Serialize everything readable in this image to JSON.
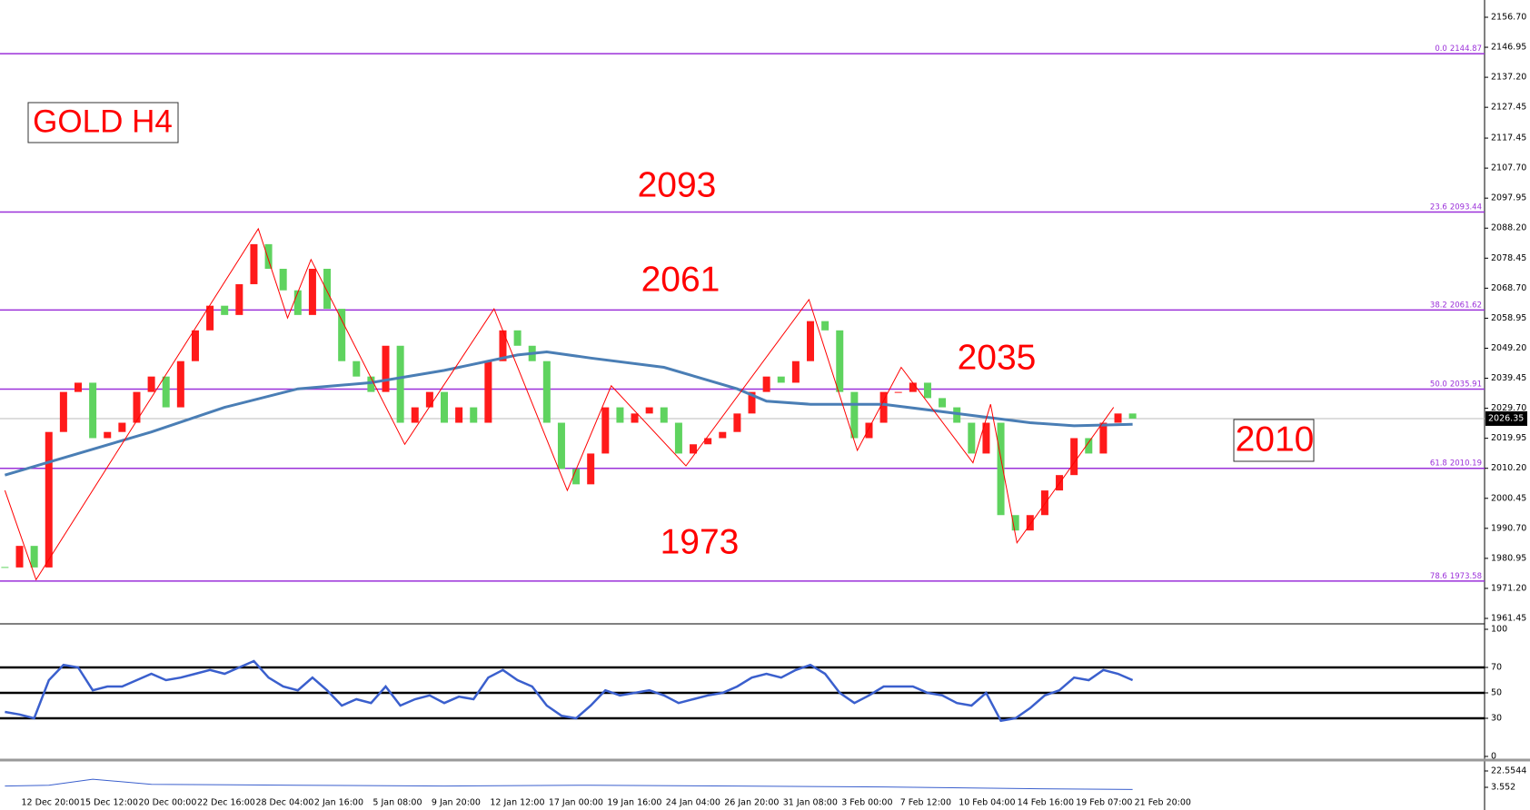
{
  "chart_data": [
    {
      "type": "candlestick",
      "title": "GOLD H4",
      "categories": [
        null,
        "12 Dec 20:00",
        null,
        null,
        null,
        "15 Dec 12:00",
        null,
        null,
        null,
        "20 Dec 00:00",
        null,
        null,
        null,
        "22 Dec 16:00",
        null,
        null,
        null,
        "28 Dec 04:00",
        null,
        null,
        null,
        "2 Jan 16:00",
        null,
        null,
        null,
        "5 Jan 08:00",
        null,
        null,
        null,
        "9 Jan 20:00",
        null,
        null,
        null,
        "12 Jan 12:00",
        null,
        null,
        null,
        "17 Jan 00:00",
        null,
        null,
        null,
        "19 Jan 16:00",
        null,
        null,
        null,
        "24 Jan 04:00",
        null,
        null,
        null,
        "26 Jan 20:00",
        null,
        null,
        null,
        "31 Jan 08:00",
        null,
        null,
        null,
        "3 Feb 00:00",
        null,
        null,
        null,
        "7 Feb 12:00",
        null,
        null,
        null,
        "10 Feb 04:00",
        null,
        null,
        null,
        "14 Feb 16:00",
        null,
        null,
        null,
        "19 Feb 07:00",
        null,
        null,
        null,
        "21 Feb 20:00"
      ],
      "xlim": [
        -0.335,
        101.03
      ],
      "close": [
        1978,
        1985,
        1978,
        2022,
        2035,
        2038,
        2020,
        2022,
        2025,
        2035,
        2040,
        2030,
        2045,
        2055,
        2063,
        2060,
        2070,
        2083,
        2075,
        2068,
        2060,
        2075,
        2062,
        2045,
        2040,
        2035,
        2050,
        2025,
        2030,
        2035,
        2025,
        2030,
        2025,
        2045,
        2055,
        2050,
        2045,
        2025,
        2010,
        2005,
        2015,
        2030,
        2025,
        2028,
        2030,
        2025,
        2015,
        2018,
        2020,
        2022,
        2028,
        2035,
        2040,
        2038,
        2045,
        2058,
        2055,
        2035,
        2020,
        2025,
        2035,
        2035,
        2038,
        2033,
        2030,
        2025,
        2015,
        2025,
        1995,
        1990,
        1995,
        2003,
        2008,
        2020,
        2015,
        2025,
        2028,
        2026.35
      ],
      "up_color": "#ff1a1a",
      "down_color": "#5fd35f",
      "ylim": [
        1960.27,
        2162.3
      ],
      "yticks": [
        {
          "value": 2156.7,
          "label": "2156.70"
        },
        2146.95,
        {
          "value": 2137.2,
          "label": "2137.20"
        },
        2127.45,
        2117.45,
        {
          "value": 2107.7,
          "label": "2107.70"
        },
        2097.95,
        {
          "value": 2088.2,
          "label": "2088.20"
        },
        2078.45,
        {
          "value": 2068.7,
          "label": "2068.70"
        },
        2058.95,
        {
          "value": 2049.2,
          "label": "2049.20"
        },
        2039.45,
        {
          "value": 2029.7,
          "label": "2029.70"
        },
        2019.95,
        {
          "value": 2010.2,
          "label": "2010.20"
        },
        2000.45,
        {
          "value": 1990.7,
          "label": "1990.70"
        },
        1980.95,
        {
          "value": 1971.2,
          "label": "1971.20"
        },
        1961.45
      ],
      "current_price": 2026.35,
      "ma": {
        "color": "#4a7eb5",
        "x": [
          0,
          5,
          10,
          15,
          20,
          25,
          30,
          35,
          37,
          40,
          45,
          50,
          52,
          55,
          60,
          65,
          70,
          73,
          77
        ],
        "values": [
          2008,
          2015,
          2022,
          2030,
          2036,
          2038,
          2042,
          2047,
          2048,
          2046,
          2043,
          2036,
          2032,
          2031,
          2031,
          2028,
          2025,
          2024,
          2024.5
        ]
      },
      "zigzag": {
        "color": "#ff0000",
        "x": [
          0,
          2.13,
          17.3,
          19.3,
          20.9,
          27.3,
          33.4,
          38.4,
          41.4,
          46.5,
          54.9,
          58.2,
          61.2,
          66.1,
          67.3,
          69.1,
          75.7
        ],
        "values": [
          2003,
          1974,
          2088,
          2059,
          2078,
          2018,
          2062,
          2003,
          2037,
          2011,
          2065,
          2016,
          2043,
          2012,
          2031,
          1986,
          2030
        ]
      },
      "fib_color": "#9b30d9",
      "fib_levels": [
        {
          "ratio": {
            "value": 0,
            "label": "0.0"
          },
          "price": 2144.87
        },
        {
          "ratio": 23.6,
          "price": 2093.44
        },
        {
          "ratio": 38.2,
          "price": 2061.62
        },
        {
          "ratio": {
            "value": 50,
            "label": "50.0"
          },
          "price": 2035.91
        },
        {
          "ratio": 61.8,
          "price": 2010.19
        },
        {
          "ratio": 78.6,
          "price": 1973.58
        }
      ],
      "annotations": [
        "2093",
        "2061",
        "2035",
        "1973",
        "2010"
      ]
    },
    {
      "type": "line",
      "color": "#3a5fcd",
      "values": [
        35,
        33,
        30,
        60,
        72,
        70,
        52,
        55,
        55,
        60,
        65,
        60,
        62,
        65,
        68,
        65,
        70,
        75,
        62,
        55,
        52,
        62,
        52,
        40,
        45,
        42,
        55,
        40,
        45,
        48,
        42,
        47,
        45,
        62,
        68,
        60,
        55,
        40,
        32,
        30,
        40,
        52,
        48,
        50,
        52,
        48,
        42,
        45,
        48,
        50,
        55,
        62,
        65,
        62,
        68,
        72,
        65,
        50,
        42,
        48,
        55,
        55,
        55,
        50,
        48,
        42,
        40,
        50,
        28,
        30,
        38,
        48,
        52,
        62,
        60,
        68,
        65,
        60
      ],
      "ylim": [
        0,
        100
      ],
      "yticks": [
        0,
        30,
        50,
        70,
        100
      ],
      "levels": [
        30,
        50,
        70
      ]
    },
    {
      "type": "line",
      "color": "#3a5fcd",
      "x": [
        0,
        3,
        6,
        10,
        20,
        30,
        40,
        50,
        60,
        70,
        77
      ],
      "values": [
        5,
        6,
        13,
        7,
        6,
        5,
        6,
        5,
        4,
        2,
        1
      ],
      "ylim": [
        -20.7,
        29.95
      ],
      "yticks": [
        3.552,
        22.5544
      ]
    }
  ]
}
